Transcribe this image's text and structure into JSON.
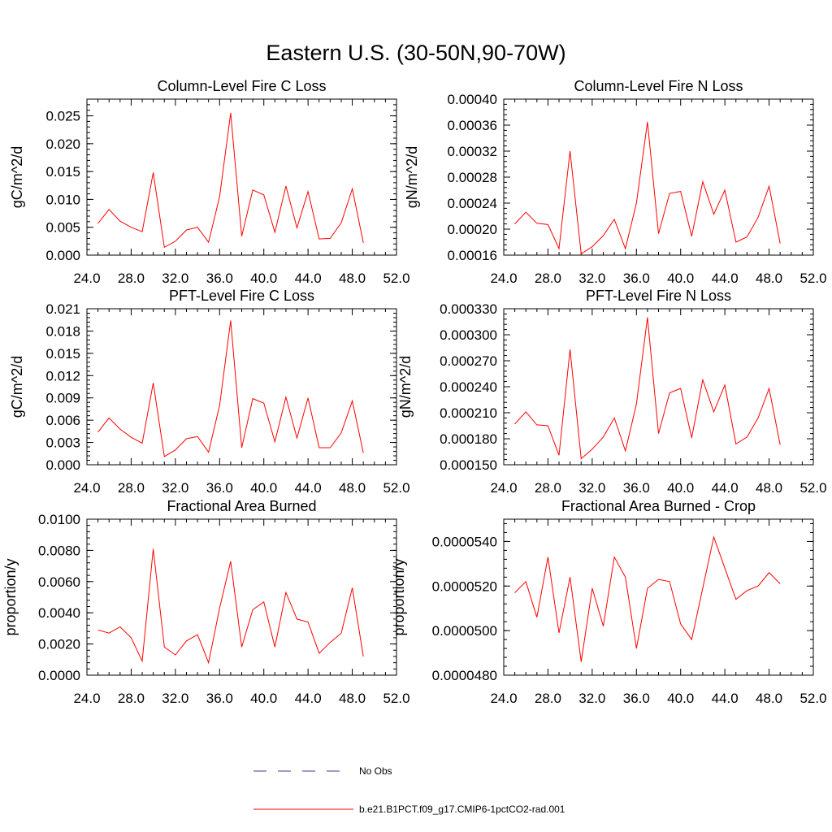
{
  "page_title": "Eastern U.S. (30-50N,90-70W)",
  "colors": {
    "model_line": "#ff0000",
    "obs_line": "#3a3aa0",
    "axis": "#000000"
  },
  "legend": {
    "items": [
      {
        "label": "No Obs",
        "style": "dashed",
        "color": "#3a3aa0"
      },
      {
        "label": "b.e21.B1PCT.f09_g17.CMIP6-1pctCO2-rad.001",
        "style": "solid",
        "color": "#ff0000"
      }
    ]
  },
  "chart_data": [
    {
      "type": "line",
      "title": "Column-Level Fire C Loss",
      "ylabel": "gC/m^2/d",
      "xlim": [
        24,
        52
      ],
      "ylim": [
        0,
        0.028
      ],
      "xticks": [
        "24.0",
        "28.0",
        "32.0",
        "36.0",
        "40.0",
        "44.0",
        "48.0",
        "52.0"
      ],
      "yticks": [
        "0.000",
        "0.005",
        "0.010",
        "0.015",
        "0.020",
        "0.025"
      ],
      "x": [
        25,
        26,
        27,
        28,
        29,
        30,
        31,
        32,
        33,
        34,
        35,
        36,
        37,
        38,
        39,
        40,
        41,
        42,
        43,
        44,
        45,
        46,
        47,
        48,
        49
      ],
      "series": [
        {
          "values": [
            0.0057,
            0.0082,
            0.0061,
            0.005,
            0.0042,
            0.0148,
            0.0014,
            0.0025,
            0.0045,
            0.005,
            0.0023,
            0.0105,
            0.0255,
            0.0034,
            0.0117,
            0.0108,
            0.0041,
            0.0124,
            0.0049,
            0.0114,
            0.0029,
            0.003,
            0.0058,
            0.0119,
            0.0022
          ]
        }
      ]
    },
    {
      "type": "line",
      "title": "Column-Level Fire N Loss",
      "ylabel": "gN/m^2/d",
      "xlim": [
        24,
        52
      ],
      "ylim": [
        0.00016,
        0.0004
      ],
      "xticks": [
        "24.0",
        "28.0",
        "32.0",
        "36.0",
        "40.0",
        "44.0",
        "48.0",
        "52.0"
      ],
      "yticks": [
        "0.00016",
        "0.00020",
        "0.00024",
        "0.00028",
        "0.00032",
        "0.00036",
        "0.00040"
      ],
      "x": [
        25,
        26,
        27,
        28,
        29,
        30,
        31,
        32,
        33,
        34,
        35,
        36,
        37,
        38,
        39,
        40,
        41,
        42,
        43,
        44,
        45,
        46,
        47,
        48,
        49
      ],
      "series": [
        {
          "values": [
            0.000208,
            0.000226,
            0.000209,
            0.000207,
            0.00017,
            0.00032,
            0.000162,
            0.000173,
            0.00019,
            0.000215,
            0.00017,
            0.00024,
            0.000365,
            0.000193,
            0.000255,
            0.000258,
            0.000189,
            0.000273,
            0.000223,
            0.00026,
            0.00018,
            0.000188,
            0.000218,
            0.000266,
            0.000178
          ]
        }
      ]
    },
    {
      "type": "line",
      "title": "PFT-Level Fire C Loss",
      "ylabel": "gC/m^2/d",
      "xlim": [
        24,
        52
      ],
      "ylim": [
        0,
        0.021
      ],
      "xticks": [
        "24.0",
        "28.0",
        "32.0",
        "36.0",
        "40.0",
        "44.0",
        "48.0",
        "52.0"
      ],
      "yticks": [
        "0.000",
        "0.003",
        "0.006",
        "0.009",
        "0.012",
        "0.015",
        "0.018",
        "0.021"
      ],
      "x": [
        25,
        26,
        27,
        28,
        29,
        30,
        31,
        32,
        33,
        34,
        35,
        36,
        37,
        38,
        39,
        40,
        41,
        42,
        43,
        44,
        45,
        46,
        47,
        48,
        49
      ],
      "series": [
        {
          "values": [
            0.0044,
            0.0063,
            0.0048,
            0.0037,
            0.0029,
            0.011,
            0.0011,
            0.002,
            0.0035,
            0.0038,
            0.0017,
            0.008,
            0.0194,
            0.0023,
            0.0089,
            0.0083,
            0.0031,
            0.0091,
            0.0036,
            0.009,
            0.0023,
            0.0023,
            0.0043,
            0.0086,
            0.0016
          ]
        }
      ]
    },
    {
      "type": "line",
      "title": "PFT-Level Fire N Loss",
      "ylabel": "gN/m^2/d",
      "xlim": [
        24,
        52
      ],
      "ylim": [
        0.00015,
        0.00033
      ],
      "xticks": [
        "24.0",
        "28.0",
        "32.0",
        "36.0",
        "40.0",
        "44.0",
        "48.0",
        "52.0"
      ],
      "yticks": [
        "0.000150",
        "0.000180",
        "0.000210",
        "0.000240",
        "0.000270",
        "0.000300",
        "0.000330"
      ],
      "x": [
        25,
        26,
        27,
        28,
        29,
        30,
        31,
        32,
        33,
        34,
        35,
        36,
        37,
        38,
        39,
        40,
        41,
        42,
        43,
        44,
        45,
        46,
        47,
        48,
        49
      ],
      "series": [
        {
          "values": [
            0.000197,
            0.000211,
            0.000196,
            0.000195,
            0.000161,
            0.000283,
            0.000157,
            0.000168,
            0.000182,
            0.000204,
            0.000166,
            0.00022,
            0.00032,
            0.000186,
            0.000233,
            0.000238,
            0.000181,
            0.000248,
            0.000211,
            0.000242,
            0.000174,
            0.000182,
            0.000204,
            0.000238,
            0.000173
          ]
        }
      ]
    },
    {
      "type": "line",
      "title": "Fractional Area Burned",
      "ylabel": "proportion/y",
      "xlim": [
        24,
        52
      ],
      "ylim": [
        0,
        0.01
      ],
      "xticks": [
        "24.0",
        "28.0",
        "32.0",
        "36.0",
        "40.0",
        "44.0",
        "48.0",
        "52.0"
      ],
      "yticks": [
        "0.0000",
        "0.0020",
        "0.0040",
        "0.0060",
        "0.0080",
        "0.0100"
      ],
      "x": [
        25,
        26,
        27,
        28,
        29,
        30,
        31,
        32,
        33,
        34,
        35,
        36,
        37,
        38,
        39,
        40,
        41,
        42,
        43,
        44,
        45,
        46,
        47,
        48,
        49
      ],
      "series": [
        {
          "values": [
            0.0029,
            0.0027,
            0.0031,
            0.0024,
            0.0009,
            0.0081,
            0.0018,
            0.0013,
            0.0022,
            0.0026,
            0.0008,
            0.0043,
            0.0073,
            0.0018,
            0.0042,
            0.0047,
            0.0018,
            0.0053,
            0.0036,
            0.0034,
            0.0014,
            0.0021,
            0.0027,
            0.0056,
            0.0012
          ]
        }
      ]
    },
    {
      "type": "line",
      "title": "Fractional Area Burned - Crop",
      "ylabel": "proportion/y",
      "xlim": [
        24,
        52
      ],
      "ylim": [
        4.8e-05,
        5.5e-05
      ],
      "xticks": [
        "24.0",
        "28.0",
        "32.0",
        "36.0",
        "40.0",
        "44.0",
        "48.0",
        "52.0"
      ],
      "yticks": [
        "0.0000480",
        "0.0000500",
        "0.0000520",
        "0.0000540"
      ],
      "x": [
        25,
        26,
        27,
        28,
        29,
        30,
        31,
        32,
        33,
        34,
        35,
        36,
        37,
        38,
        39,
        40,
        41,
        42,
        43,
        44,
        45,
        46,
        47,
        48,
        49
      ],
      "series": [
        {
          "values": [
            5.17e-05,
            5.22e-05,
            5.06e-05,
            5.33e-05,
            4.99e-05,
            5.24e-05,
            4.86e-05,
            5.19e-05,
            5.02e-05,
            5.33e-05,
            5.24e-05,
            4.92e-05,
            5.19e-05,
            5.23e-05,
            5.22e-05,
            5.03e-05,
            4.96e-05,
            5.19e-05,
            5.42e-05,
            5.28e-05,
            5.14e-05,
            5.18e-05,
            5.2e-05,
            5.26e-05,
            5.21e-05
          ]
        }
      ]
    }
  ]
}
